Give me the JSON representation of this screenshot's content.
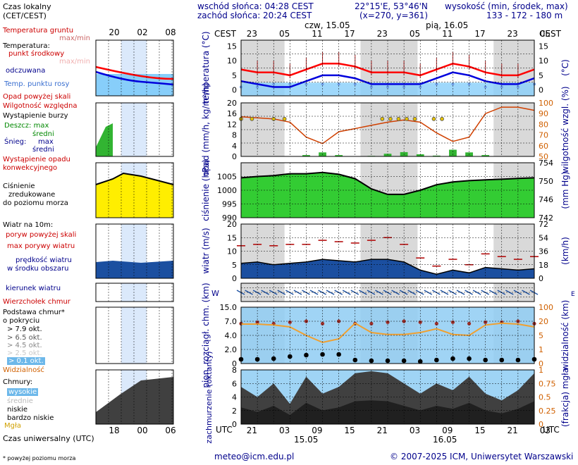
{
  "header": {
    "sunrise": "wschód słońca: 04:28 CEST",
    "sunset": "zachód słońca: 20:24 CEST",
    "coords": "22°15'E, 53°46'N",
    "grid": "(x=270,  y=361)",
    "elev_title": "wysokość (min, środek, max)",
    "elev_values": "133 - 172 - 180 m",
    "day1": "czw, 15.05",
    "day2": "pią, 16.05",
    "tz_local": "CEST",
    "tz_utc": "UTC"
  },
  "time_axis": {
    "local_labels": [
      "23",
      "05",
      "11",
      "17",
      "23",
      "05",
      "11",
      "17",
      "23",
      "05"
    ],
    "utc_labels": [
      "21",
      "03",
      "09",
      "15",
      "21",
      "03",
      "09",
      "15",
      "21",
      "03"
    ],
    "date1": "15.05",
    "date2": "16.05"
  },
  "legend": {
    "local_time": "Czas lokalny",
    "local_time2": "(CET/CEST)",
    "legend_local_ticks": [
      "20",
      "02",
      "08"
    ],
    "legend_utc_ticks": [
      "18",
      "00",
      "06"
    ],
    "temp_ground": "Temperatura gruntu",
    "maxmin": "max/min",
    "temperature": "Temperatura:",
    "center_point": "punkt środkowy",
    "maxmin2": "max/min",
    "perceived": "odczuwana",
    "dewpoint": "Temp. punktu rosy",
    "precip_above": "Opad powyżej skali",
    "humidity": "Wilgotność względna",
    "storm": "Wystąpienie burzy",
    "rain": "Deszcz: max",
    "mean1": "średni",
    "snow": "Śnieg:",
    "max2": "max",
    "mean2": "średni",
    "conv1": "Wystąpienie opadu",
    "conv2": "konwekcyjnego",
    "pres1": "Ciśnienie",
    "pres2": "zredukowane",
    "pres3": "do poziomu morza",
    "wind_title": "Wiatr na 10m:",
    "gust_above": "poryw powyżej skali",
    "gust_max": "max porywy wiatru",
    "wind_mean1": "prędkość wiatru",
    "wind_mean2": "w środku obszaru",
    "wind_dir": "kierunek wiatru",
    "cloud_top": "Wierzchołek chmur",
    "cloud_base1": "Podstawa chmur*",
    "cloud_base2": "o pokryciu",
    "okt": [
      "> 7.9 okt.",
      "> 6.5 okt.",
      "> 4.5 okt.",
      "> 2.5 okt.",
      "> 0.1 okt."
    ],
    "visibility": "Widzialność",
    "clouds": "Chmury:",
    "high": "wysokie",
    "mid": "średnie",
    "low": "niskie",
    "vlow": "bardzo niskie",
    "fog": "Mgła",
    "utc_time": "Czas uniwersalny (UTC)",
    "footnote": "* powyżej poziomu morza"
  },
  "footer": {
    "email": "meteo@icm.edu.pl",
    "copyright": "© 2007-2025 ICM, Uniwersytet Warszawski"
  },
  "colors": {
    "plot_bg": "#ffffff",
    "night_band": "#d9d9d9",
    "temp": "#ff0000",
    "perceived": "#0000dd",
    "dewpoint": "#6f9fe8",
    "cold_fill": "#87cefa",
    "humidity": "#d04000",
    "rain": "#32b432",
    "pressure": "#33cc33",
    "pressure_legend": "#ffee00",
    "wind": "#1b4fa0",
    "gust": "#b00000",
    "cloud_dark": "#404040",
    "axis_blue": "#00008b",
    "axis_orange": "#d06000"
  },
  "chart_data": [
    {
      "type": "line",
      "title": "temperatura",
      "ylabel": "temperatura (°C)",
      "ylim": [
        -2,
        17
      ],
      "x": [
        0,
        3,
        6,
        9,
        12,
        15,
        18,
        21,
        24,
        27,
        30,
        33,
        36,
        39,
        42,
        45,
        48,
        51,
        54
      ],
      "yticks": [
        0,
        5,
        10,
        15
      ],
      "series": [
        {
          "name": "punkt środkowy",
          "values": [
            7,
            6,
            6,
            5,
            7,
            9,
            9,
            8,
            6,
            6,
            6,
            5,
            7,
            9,
            8,
            6,
            5,
            5,
            7
          ]
        },
        {
          "name": "odczuwana",
          "values": [
            3,
            2,
            1,
            1,
            3,
            5,
            5,
            4,
            2,
            2,
            2,
            2,
            4,
            6,
            5,
            3,
            2,
            2,
            4
          ]
        },
        {
          "name": "Temp. punktu rosy",
          "values": [
            1,
            1,
            2,
            2,
            2,
            2,
            2,
            2,
            1,
            1,
            1,
            1,
            2,
            2,
            2,
            1,
            1,
            1,
            2
          ]
        }
      ]
    },
    {
      "type": "bar",
      "title": "opad",
      "ylabel": "opad (mm/h, kg/m²/h)",
      "y2label": "wilgotność wzgl. (%)",
      "ylim": [
        0,
        20
      ],
      "y2lim": [
        50,
        100
      ],
      "x": [
        0,
        3,
        6,
        9,
        12,
        15,
        18,
        21,
        24,
        27,
        30,
        33,
        36,
        39,
        42,
        45,
        48,
        51,
        54
      ],
      "yticks": [
        0,
        4,
        8,
        12,
        16,
        20
      ],
      "y2ticks": [
        50,
        60,
        70,
        80,
        90,
        100
      ],
      "series": [
        {
          "name": "Wilgotność względna",
          "values": [
            87,
            86,
            85,
            82,
            68,
            62,
            73,
            76,
            79,
            82,
            84,
            82,
            72,
            64,
            68,
            90,
            96,
            96,
            93
          ]
        },
        {
          "name": "Deszcz",
          "values": [
            0,
            0,
            0,
            0,
            0.5,
            1.5,
            0.5,
            0,
            0.2,
            1,
            1.6,
            0.8,
            0.3,
            2.5,
            1.5,
            0.5,
            0,
            0,
            0
          ]
        }
      ]
    },
    {
      "type": "area",
      "title": "ciśnienie",
      "ylabel": "ciśnienie (hPa)",
      "y2label": "(mm Hg)",
      "ylim": [
        990,
        1010
      ],
      "yticks": [
        990,
        995,
        1000,
        1005
      ],
      "y2ticks": [
        742,
        746,
        750,
        754
      ],
      "x": [
        0,
        3,
        6,
        9,
        12,
        15,
        18,
        21,
        24,
        27,
        30,
        33,
        36,
        39,
        42,
        45,
        48,
        51,
        54
      ],
      "values": [
        1004.5,
        1005,
        1005.3,
        1006,
        1006,
        1006.5,
        1005.8,
        1004.2,
        1000.5,
        998.5,
        998.5,
        1000,
        1002,
        1003,
        1003.5,
        1003.8,
        1004,
        1004.3,
        1004.5
      ]
    },
    {
      "type": "line",
      "title": "wiatr",
      "ylabel": "wiatr (m/s)",
      "y2label": "(km/h)",
      "ylim": [
        0,
        20
      ],
      "yticks": [
        0,
        5,
        10,
        15,
        20
      ],
      "y2ticks": [
        0,
        18,
        36,
        54,
        72
      ],
      "x": [
        0,
        3,
        6,
        9,
        12,
        15,
        18,
        21,
        24,
        27,
        30,
        33,
        36,
        39,
        42,
        45,
        48,
        51,
        54
      ],
      "series": [
        {
          "name": "prędkość wiatru",
          "values": [
            5.5,
            6,
            5,
            5.5,
            6,
            7,
            6.5,
            6,
            7,
            7,
            6,
            3,
            1.5,
            3,
            2,
            4,
            3.5,
            3,
            3.5
          ]
        },
        {
          "name": "max porywy wiatru",
          "values": [
            12,
            12.5,
            12,
            12.5,
            12.5,
            14,
            13.5,
            13,
            14,
            15,
            12.5,
            7.5,
            4.5,
            7,
            5,
            9,
            8,
            7,
            8
          ]
        }
      ]
    },
    {
      "type": "scatter",
      "title": "chmury",
      "ylabel": "pion. rozciągł. chm. (km)",
      "y2label": "widzialność (km)",
      "yticks": [
        0,
        2,
        4,
        7,
        15
      ],
      "ytick_labels": [
        "0",
        "2.0",
        "4.0",
        "7.0",
        "15.0"
      ],
      "y2ticks": [
        0,
        1,
        5,
        20,
        100
      ],
      "x": [
        0,
        3,
        6,
        9,
        12,
        15,
        18,
        21,
        24,
        27,
        30,
        33,
        36,
        39,
        42,
        45,
        48,
        51,
        54
      ],
      "series": [
        {
          "name": "Wierzchołek chmur",
          "values": [
            6.5,
            6.8,
            6.5,
            6.8,
            7,
            6.5,
            7,
            6.5,
            6.5,
            6.8,
            7,
            6.8,
            6.5,
            6.8,
            6.5,
            6.8,
            6.8,
            7,
            6.5
          ]
        },
        {
          "name": "Podstawa chmur",
          "values": [
            0.6,
            0.6,
            0.7,
            1,
            1.2,
            1.3,
            1.3,
            0.5,
            0.4,
            0.4,
            0.4,
            0.3,
            0.5,
            0.7,
            0.7,
            0.5,
            0.5,
            0.5,
            0.6
          ]
        },
        {
          "name": "Widzialność",
          "values": [
            17,
            17,
            16,
            14,
            5,
            3,
            4,
            18,
            8,
            6,
            6,
            8,
            12,
            6,
            5,
            16,
            18,
            17,
            14
          ]
        }
      ]
    },
    {
      "type": "area",
      "title": "zachmurzenie",
      "ylabel": "zachmurzenie (oktanty)",
      "y2label": "(frakcja) mgła",
      "ylim": [
        0,
        8
      ],
      "yticks": [
        0,
        2,
        4,
        6,
        8
      ],
      "y2ticks": [
        0,
        0.25,
        0.5,
        0.75,
        1
      ],
      "x": [
        0,
        3,
        6,
        9,
        12,
        15,
        18,
        21,
        24,
        27,
        30,
        33,
        36,
        39,
        42,
        45,
        48,
        51,
        54
      ],
      "values": [
        5.5,
        4,
        6,
        3,
        7,
        4.5,
        5.5,
        7.5,
        7.8,
        7.5,
        6,
        4.5,
        6,
        5,
        7,
        4.5,
        3.5,
        5,
        7.5
      ]
    }
  ]
}
